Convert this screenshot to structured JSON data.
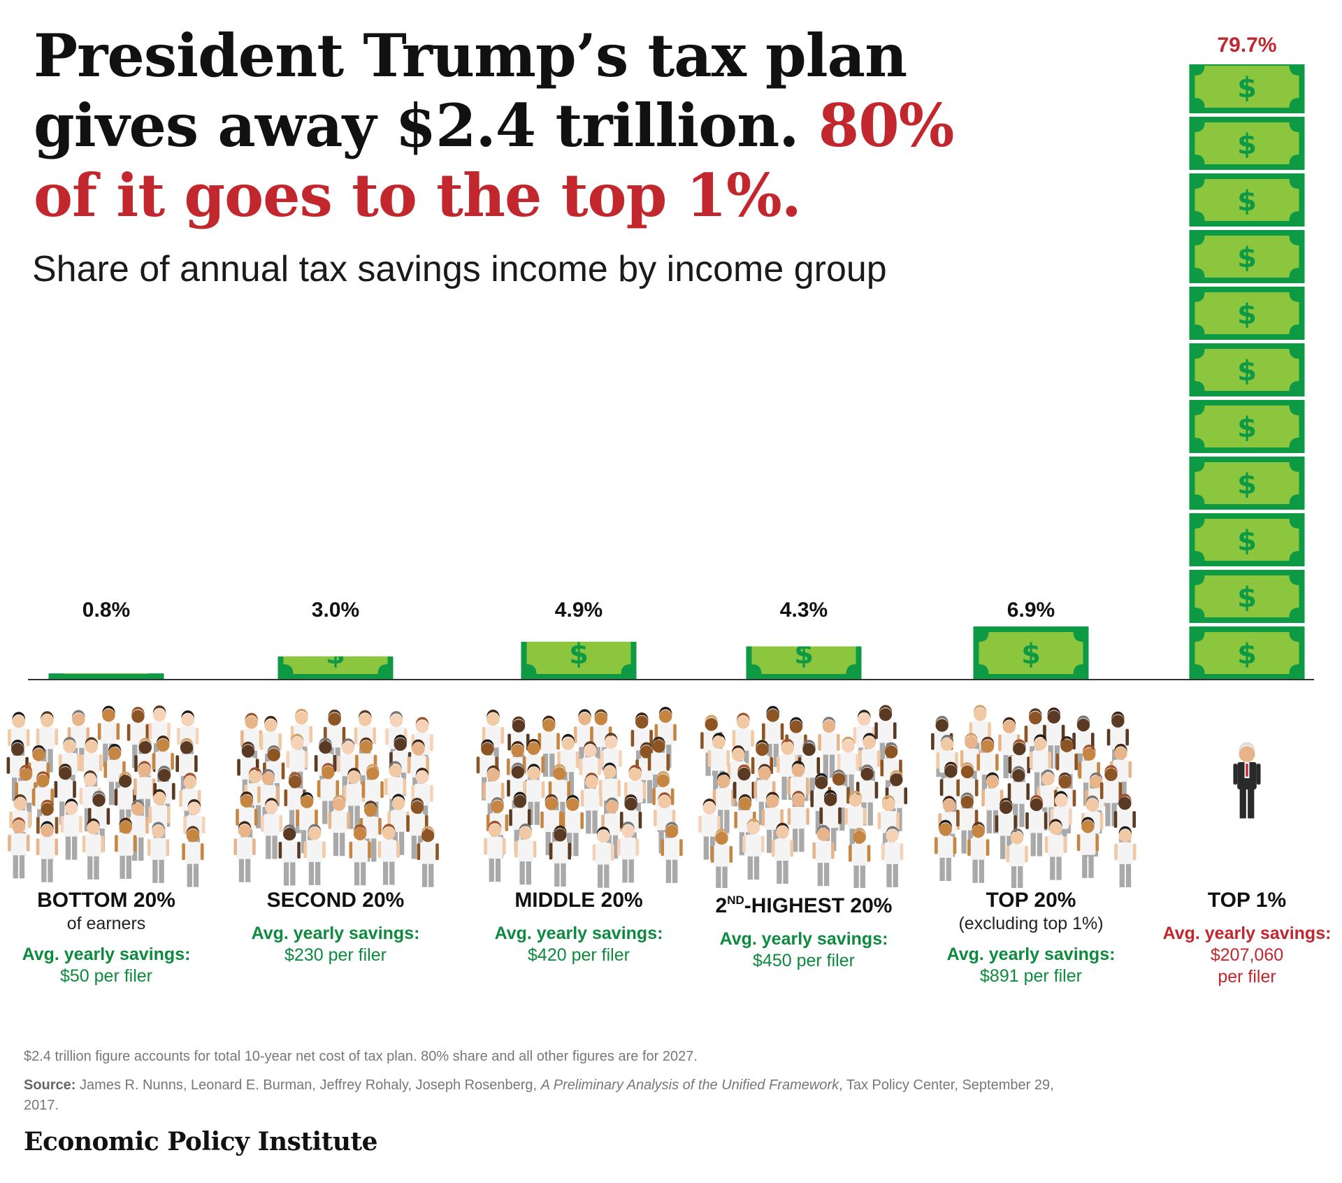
{
  "headline": {
    "part1": "President Trump’s tax plan gives away $2.4 trillion.",
    "part2": "80% of it goes to the top 1%."
  },
  "subtitle": "Share of annual tax savings income by income group",
  "chart_data": {
    "type": "bar",
    "title": "Share of annual tax savings income by income group",
    "categories": [
      "BOTTOM 20%",
      "SECOND 20%",
      "MIDDLE 20%",
      "2ND-HIGHEST 20%",
      "TOP 20%",
      "TOP 1%"
    ],
    "values": [
      0.8,
      3.0,
      4.9,
      4.3,
      6.9,
      79.7
    ],
    "value_labels": [
      "0.8%",
      "3.0%",
      "4.9%",
      "4.3%",
      "6.9%",
      "79.7%"
    ],
    "unit": "%",
    "ylim": [
      0,
      79.7
    ],
    "bar_style": "stacked dollar bills",
    "highlight_index": 5
  },
  "groups": [
    {
      "name": "BOTTOM 20%",
      "sub": "of earners",
      "avg_label": "Avg. yearly savings:",
      "avg_value": "$50 per filer",
      "avg_value2": ""
    },
    {
      "name": "SECOND 20%",
      "sub": "",
      "avg_label": "Avg. yearly savings:",
      "avg_value": "$230 per filer",
      "avg_value2": ""
    },
    {
      "name": "MIDDLE 20%",
      "sub": "",
      "avg_label": "Avg. yearly savings:",
      "avg_value": "$420 per filer",
      "avg_value2": ""
    },
    {
      "name_prefix": "2",
      "name_sup": "ND",
      "name_suffix": "-HIGHEST 20%",
      "sub": "",
      "avg_label": "Avg. yearly savings:",
      "avg_value": "$450 per filer",
      "avg_value2": ""
    },
    {
      "name": "TOP 20%",
      "sub": "(excluding top 1%)",
      "avg_label": "Avg. yearly savings:",
      "avg_value": "$891 per filer",
      "avg_value2": ""
    },
    {
      "name": "TOP 1%",
      "sub": "",
      "avg_label": "Avg. yearly savings:",
      "avg_value": "$207,060",
      "avg_value2": "per filer"
    }
  ],
  "notes": {
    "footnote": "$2.4 trillion figure accounts for total 10-year net cost of tax plan. 80% share and all other figures are for 2027.",
    "source_label": "Source:",
    "source_text": "James R. Nunns, Leonard E. Burman, Jeffrey Rohaly, Joseph Rosenberg,",
    "source_title": "A Preliminary Analysis of the Unified Framework",
    "source_text2": ", Tax Policy Center, September 29, 2017."
  },
  "publisher": "Economic Policy Institute",
  "colors": {
    "bill_dark": "#0e9a45",
    "bill_light": "#8cc63f",
    "accent_red": "#c1272d",
    "avg_green": "#0e8a3e",
    "shirt": "#f4f4f4",
    "pants": "#a9a9a9",
    "suit": "#2a2a2a"
  }
}
